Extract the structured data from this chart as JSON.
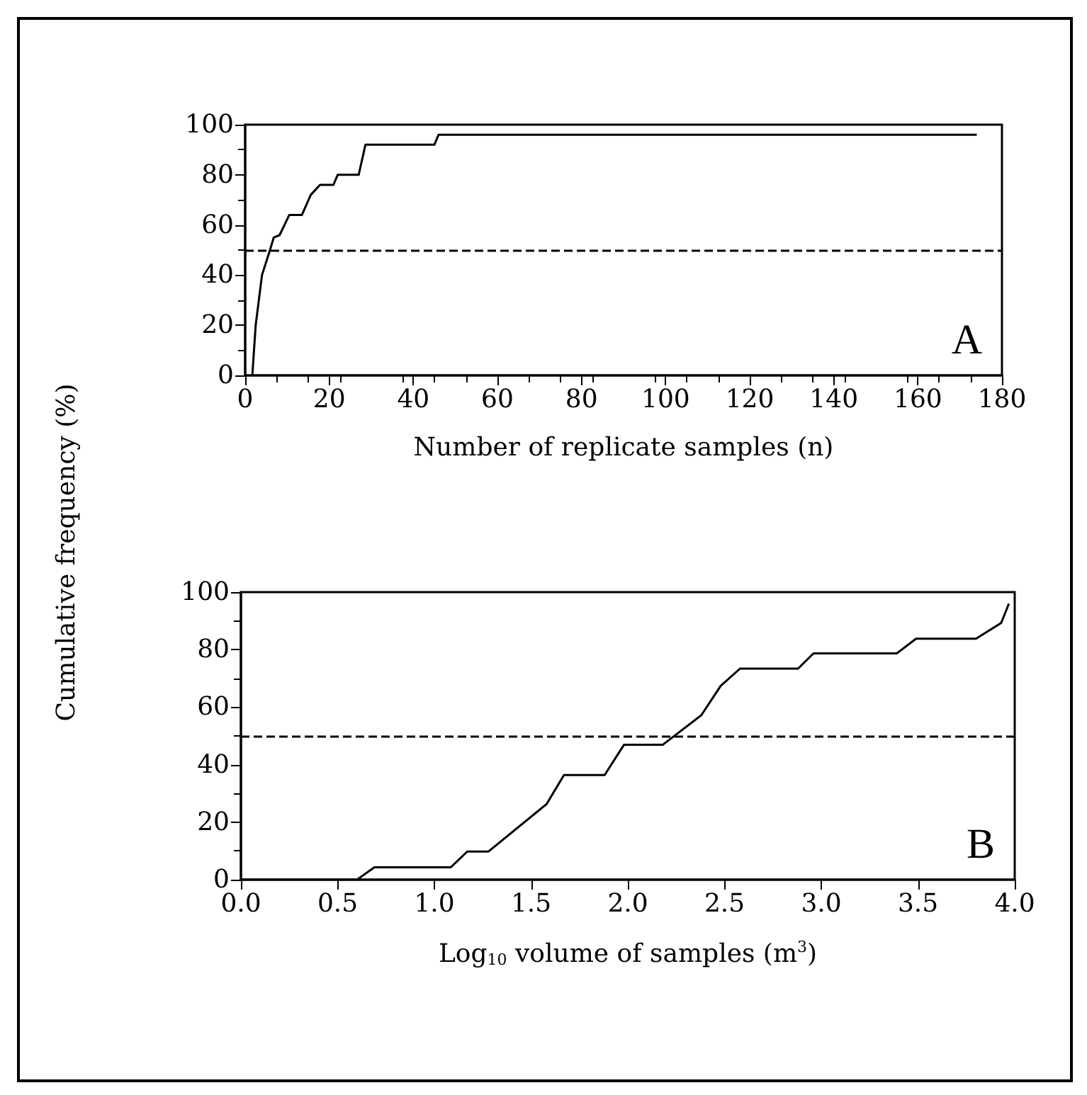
{
  "chart_data": [
    {
      "type": "line",
      "ylabel": "Cumulative frequency (%)",
      "xlabel": "Number of replicate samples (n)",
      "annotations": [
        "A"
      ],
      "x": [
        1.7,
        2.5,
        4,
        5.9,
        6.8,
        8.2,
        10.5,
        13.5,
        15.6,
        17.8,
        21,
        22,
        27,
        27.8,
        28.6,
        45,
        46,
        174
      ],
      "values": [
        0,
        20,
        40,
        50,
        55,
        56,
        64,
        64,
        72,
        76,
        76,
        80,
        80,
        86,
        92,
        92,
        96,
        96
      ],
      "color": "#000000",
      "line_style": "solid",
      "marker": "none",
      "xlim": [
        0,
        180
      ],
      "xticks": [
        0,
        20,
        40,
        60,
        80,
        100,
        120,
        140,
        160,
        180
      ],
      "ylim": [
        0,
        100
      ],
      "yticks": [
        0,
        20,
        40,
        60,
        80,
        100
      ],
      "grid": false,
      "ref_lines": [
        {
          "axis": "y",
          "value": 50,
          "line_style": "dashed",
          "color": "#000000"
        }
      ]
    },
    {
      "type": "line",
      "xlabel": "Log$_{10}$ volume of samples (m$^{3}$)",
      "annotations": [
        "B"
      ],
      "x": [
        0,
        0.6,
        0.69,
        1.085,
        1.17,
        1.28,
        1.58,
        1.67,
        1.88,
        1.98,
        2.18,
        2.38,
        2.48,
        2.58,
        2.88,
        2.96,
        3.39,
        3.49,
        3.8,
        3.93,
        3.97
      ],
      "values": [
        0,
        0,
        4.3,
        4.3,
        9.8,
        9.8,
        26.3,
        36.4,
        36.4,
        46.9,
        46.9,
        57.2,
        67.4,
        73.4,
        73.4,
        78.7,
        78.7,
        83.8,
        83.8,
        89.3,
        96
      ],
      "color": "#000000",
      "line_style": "solid",
      "marker": "none",
      "xlim": [
        0,
        4
      ],
      "xticks": [
        {
          "value": 0,
          "label": "0.0"
        },
        0.5,
        {
          "value": 1,
          "label": "1.0"
        },
        1.5,
        {
          "value": 2,
          "label": "2.0"
        },
        2.5,
        {
          "value": 3,
          "label": "3.0"
        },
        3.5,
        {
          "value": 4,
          "label": "4.0"
        }
      ],
      "ylim": [
        0,
        100
      ],
      "yticks": [
        0,
        20,
        40,
        60,
        80,
        100
      ],
      "grid": false,
      "ref_lines": [
        {
          "axis": "y",
          "value": 50,
          "line_style": "dashed",
          "color": "#000000"
        }
      ]
    }
  ]
}
